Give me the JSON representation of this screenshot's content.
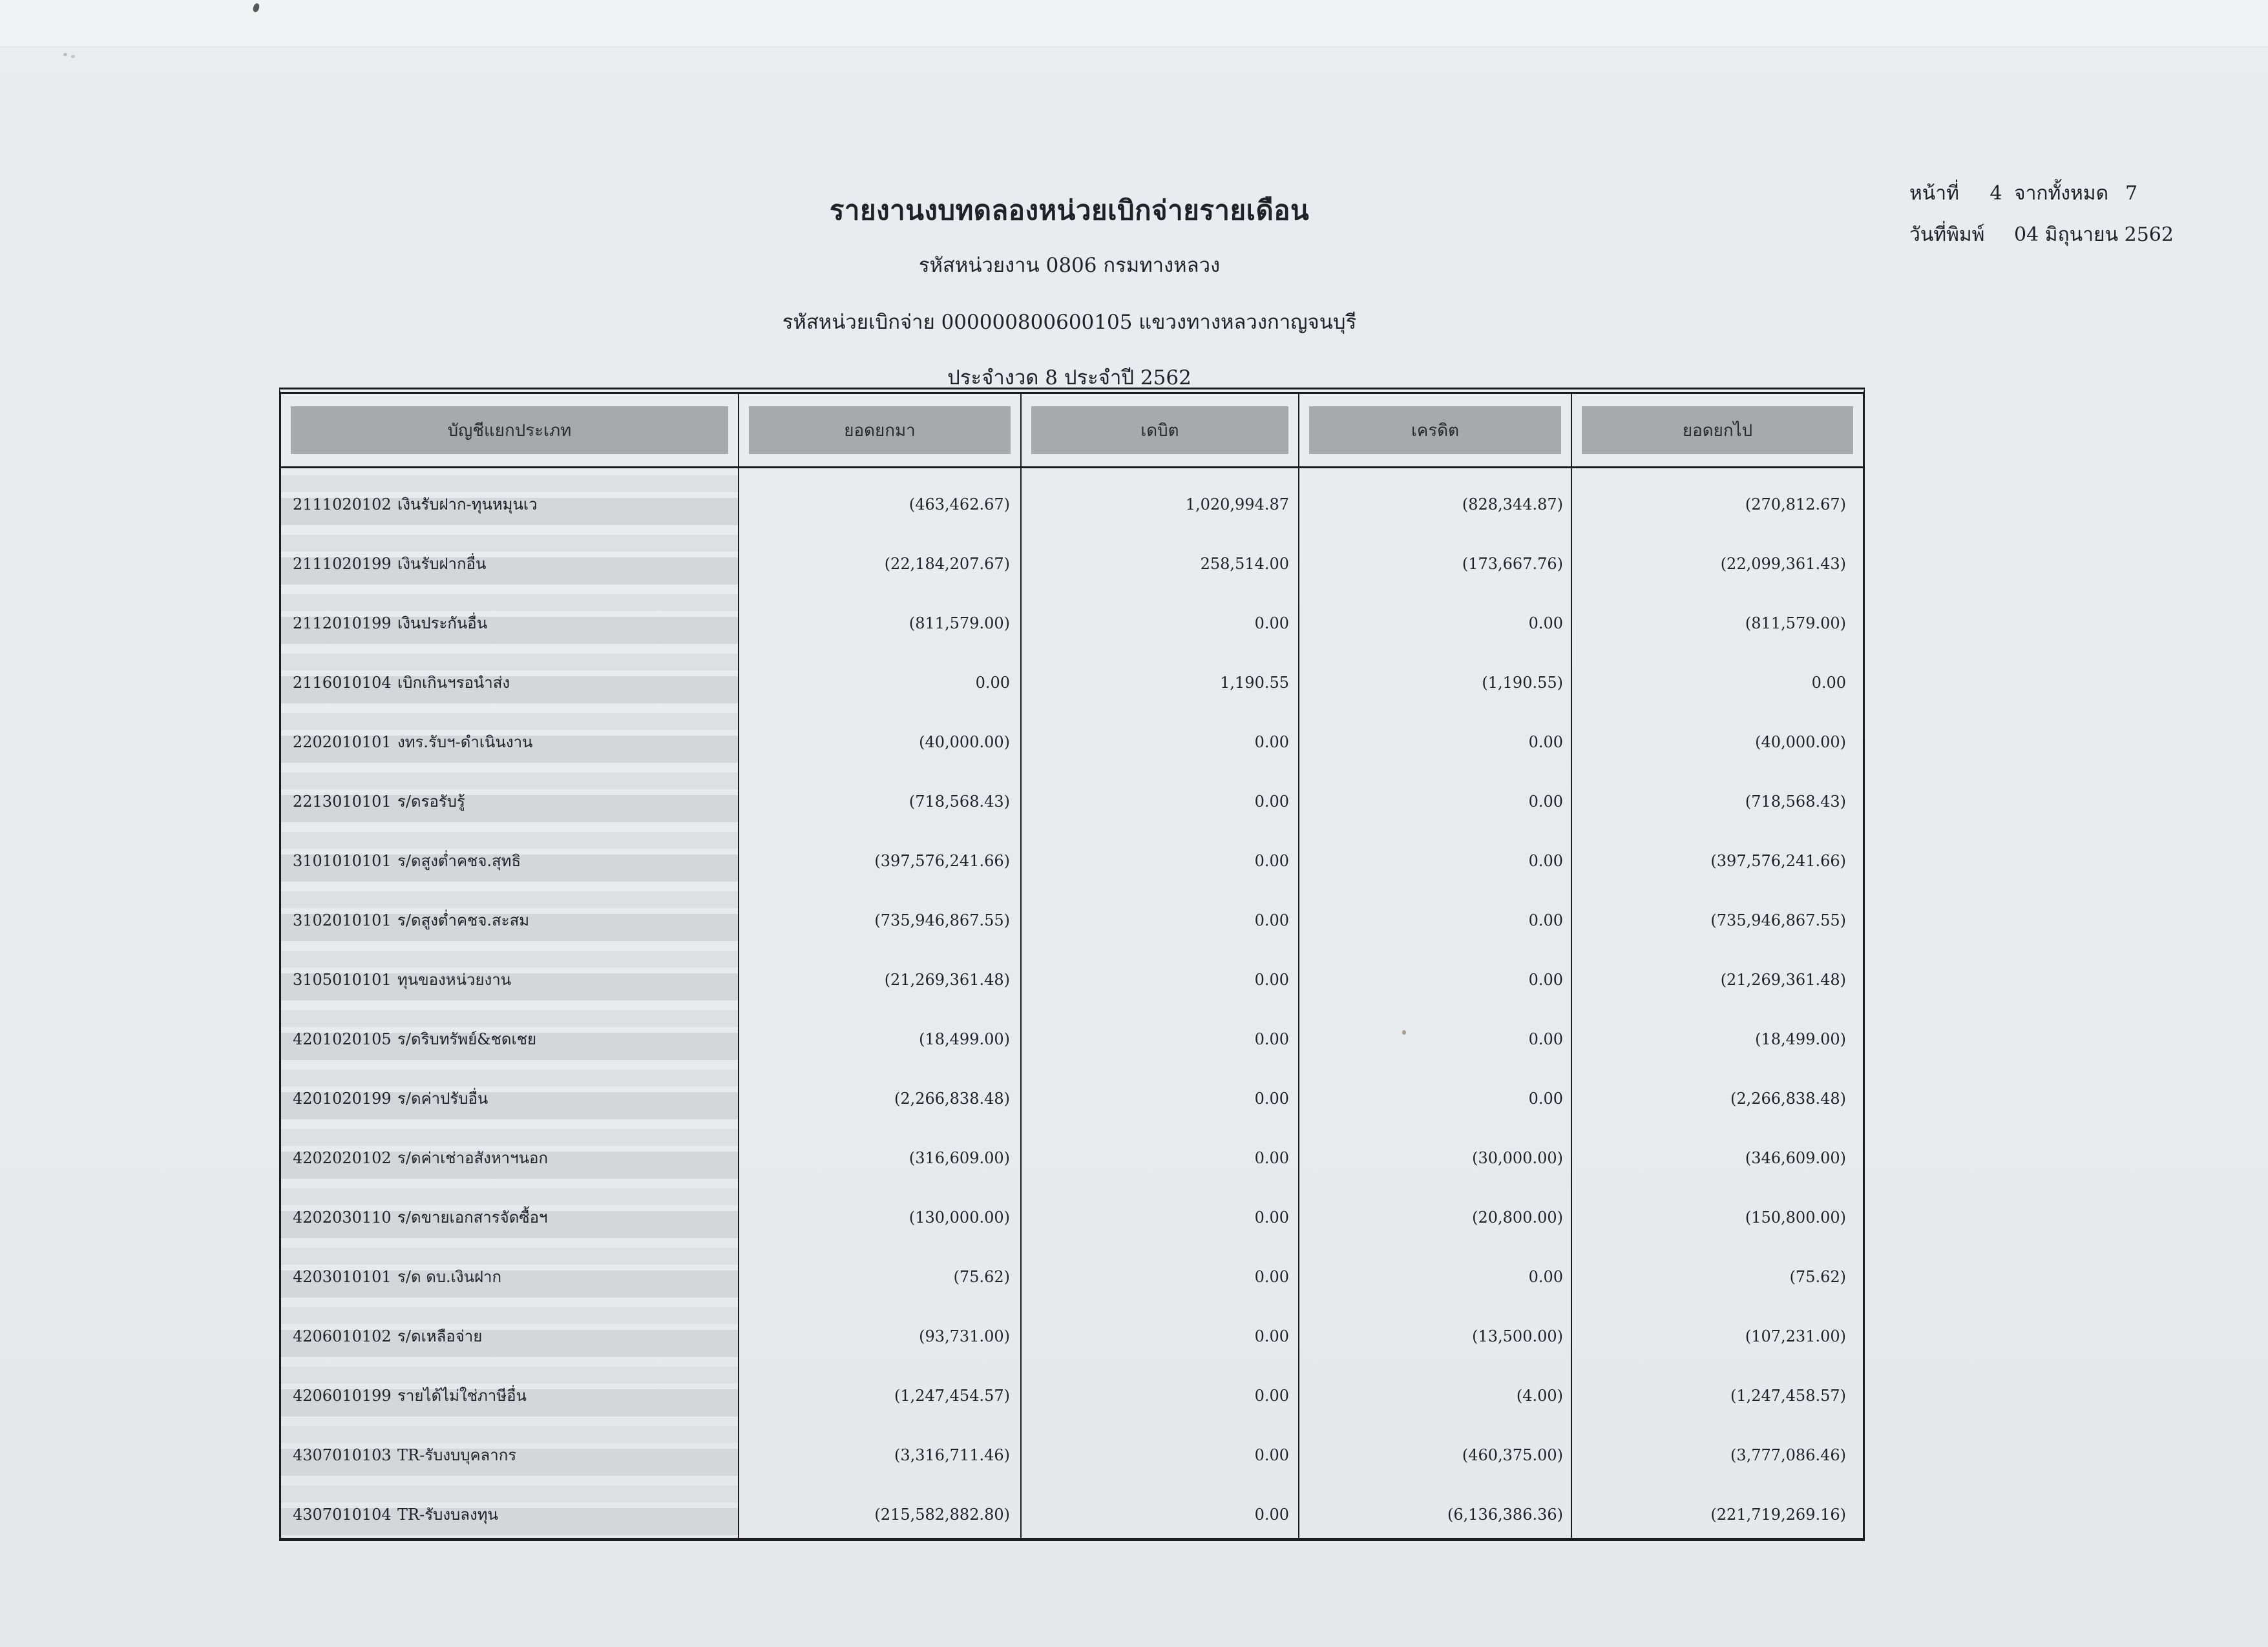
{
  "colors": {
    "line": "#1b1c1e",
    "ink": "#1e2125",
    "paper": "#e9ecef",
    "stripe1": "#d4d7da",
    "stripe2": "#dde0e3",
    "hdrfill": "#a7a9ab"
  },
  "header": {
    "title": "รายงานงบทดลองหน่วยเบิกจ่ายรายเดือน",
    "agency_line": "รหัสหน่วยงาน 0806 กรมทางหลวง",
    "disburse_line": "รหัสหน่วยเบิกจ่าย 000000800600105 แขวงทางหลวงกาญจนบุรี",
    "period_line": "ประจำงวด 8 ประจำปี 2562"
  },
  "meta": {
    "page_label": "หน้าที่",
    "page_number": "4",
    "of_label": "จากทั้งหมด",
    "total_pages": "7",
    "print_date_label": "วันที่พิมพ์",
    "print_date": "04 มิถุนายน 2562"
  },
  "table": {
    "columns": [
      "บัญชีแยกประเภท",
      "ยอดยกมา",
      "เดบิต",
      "เครดิต",
      "ยอดยกไป"
    ],
    "rows": [
      {
        "code": "2111020102",
        "name": "เงินรับฝาก-ทุนหมุนเว",
        "brought_forward": "(463,462.67)",
        "debit": "1,020,994.87",
        "credit": "(828,344.87)",
        "carried_forward": "(270,812.67)"
      },
      {
        "code": "2111020199",
        "name": "เงินรับฝากอื่น",
        "brought_forward": "(22,184,207.67)",
        "debit": "258,514.00",
        "credit": "(173,667.76)",
        "carried_forward": "(22,099,361.43)"
      },
      {
        "code": "2112010199",
        "name": "เงินประกันอื่น",
        "brought_forward": "(811,579.00)",
        "debit": "0.00",
        "credit": "0.00",
        "carried_forward": "(811,579.00)"
      },
      {
        "code": "2116010104",
        "name": "เบิกเกินฯรอนำส่ง",
        "brought_forward": "0.00",
        "debit": "1,190.55",
        "credit": "(1,190.55)",
        "carried_forward": "0.00"
      },
      {
        "code": "2202010101",
        "name": "งทร.รับฯ-ดำเนินงาน",
        "brought_forward": "(40,000.00)",
        "debit": "0.00",
        "credit": "0.00",
        "carried_forward": "(40,000.00)"
      },
      {
        "code": "2213010101",
        "name": "ร/ดรอรับรู้",
        "brought_forward": "(718,568.43)",
        "debit": "0.00",
        "credit": "0.00",
        "carried_forward": "(718,568.43)"
      },
      {
        "code": "3101010101",
        "name": "ร/ดสูงต่ำคชจ.สุทธิ",
        "brought_forward": "(397,576,241.66)",
        "debit": "0.00",
        "credit": "0.00",
        "carried_forward": "(397,576,241.66)"
      },
      {
        "code": "3102010101",
        "name": "ร/ดสูงต่ำคชจ.สะสม",
        "brought_forward": "(735,946,867.55)",
        "debit": "0.00",
        "credit": "0.00",
        "carried_forward": "(735,946,867.55)"
      },
      {
        "code": "3105010101",
        "name": "ทุนของหน่วยงาน",
        "brought_forward": "(21,269,361.48)",
        "debit": "0.00",
        "credit": "0.00",
        "carried_forward": "(21,269,361.48)"
      },
      {
        "code": "4201020105",
        "name": "ร/ดริบทรัพย์&ชดเชย",
        "brought_forward": "(18,499.00)",
        "debit": "0.00",
        "credit": "0.00",
        "carried_forward": "(18,499.00)"
      },
      {
        "code": "4201020199",
        "name": "ร/ดค่าปรับอื่น",
        "brought_forward": "(2,266,838.48)",
        "debit": "0.00",
        "credit": "0.00",
        "carried_forward": "(2,266,838.48)"
      },
      {
        "code": "4202020102",
        "name": "ร/ดค่าเช่าอสังหาฯนอก",
        "brought_forward": "(316,609.00)",
        "debit": "0.00",
        "credit": "(30,000.00)",
        "carried_forward": "(346,609.00)"
      },
      {
        "code": "4202030110",
        "name": "ร/ดขายเอกสารจัดซื้อฯ",
        "brought_forward": "(130,000.00)",
        "debit": "0.00",
        "credit": "(20,800.00)",
        "carried_forward": "(150,800.00)"
      },
      {
        "code": "4203010101",
        "name": "ร/ด ดบ.เงินฝาก",
        "brought_forward": "(75.62)",
        "debit": "0.00",
        "credit": "0.00",
        "carried_forward": "(75.62)"
      },
      {
        "code": "4206010102",
        "name": "ร/ดเหลือจ่าย",
        "brought_forward": "(93,731.00)",
        "debit": "0.00",
        "credit": "(13,500.00)",
        "carried_forward": "(107,231.00)"
      },
      {
        "code": "4206010199",
        "name": "รายได้ไม่ใช่ภาษีอื่น",
        "brought_forward": "(1,247,454.57)",
        "debit": "0.00",
        "credit": "(4.00)",
        "carried_forward": "(1,247,458.57)"
      },
      {
        "code": "4307010103",
        "name": "TR-รับงบบุคลากร",
        "brought_forward": "(3,316,711.46)",
        "debit": "0.00",
        "credit": "(460,375.00)",
        "carried_forward": "(3,777,086.46)"
      },
      {
        "code": "4307010104",
        "name": "TR-รับงบลงทุน",
        "brought_forward": "(215,582,882.80)",
        "debit": "0.00",
        "credit": "(6,136,386.36)",
        "carried_forward": "(221,719,269.16)"
      }
    ]
  }
}
